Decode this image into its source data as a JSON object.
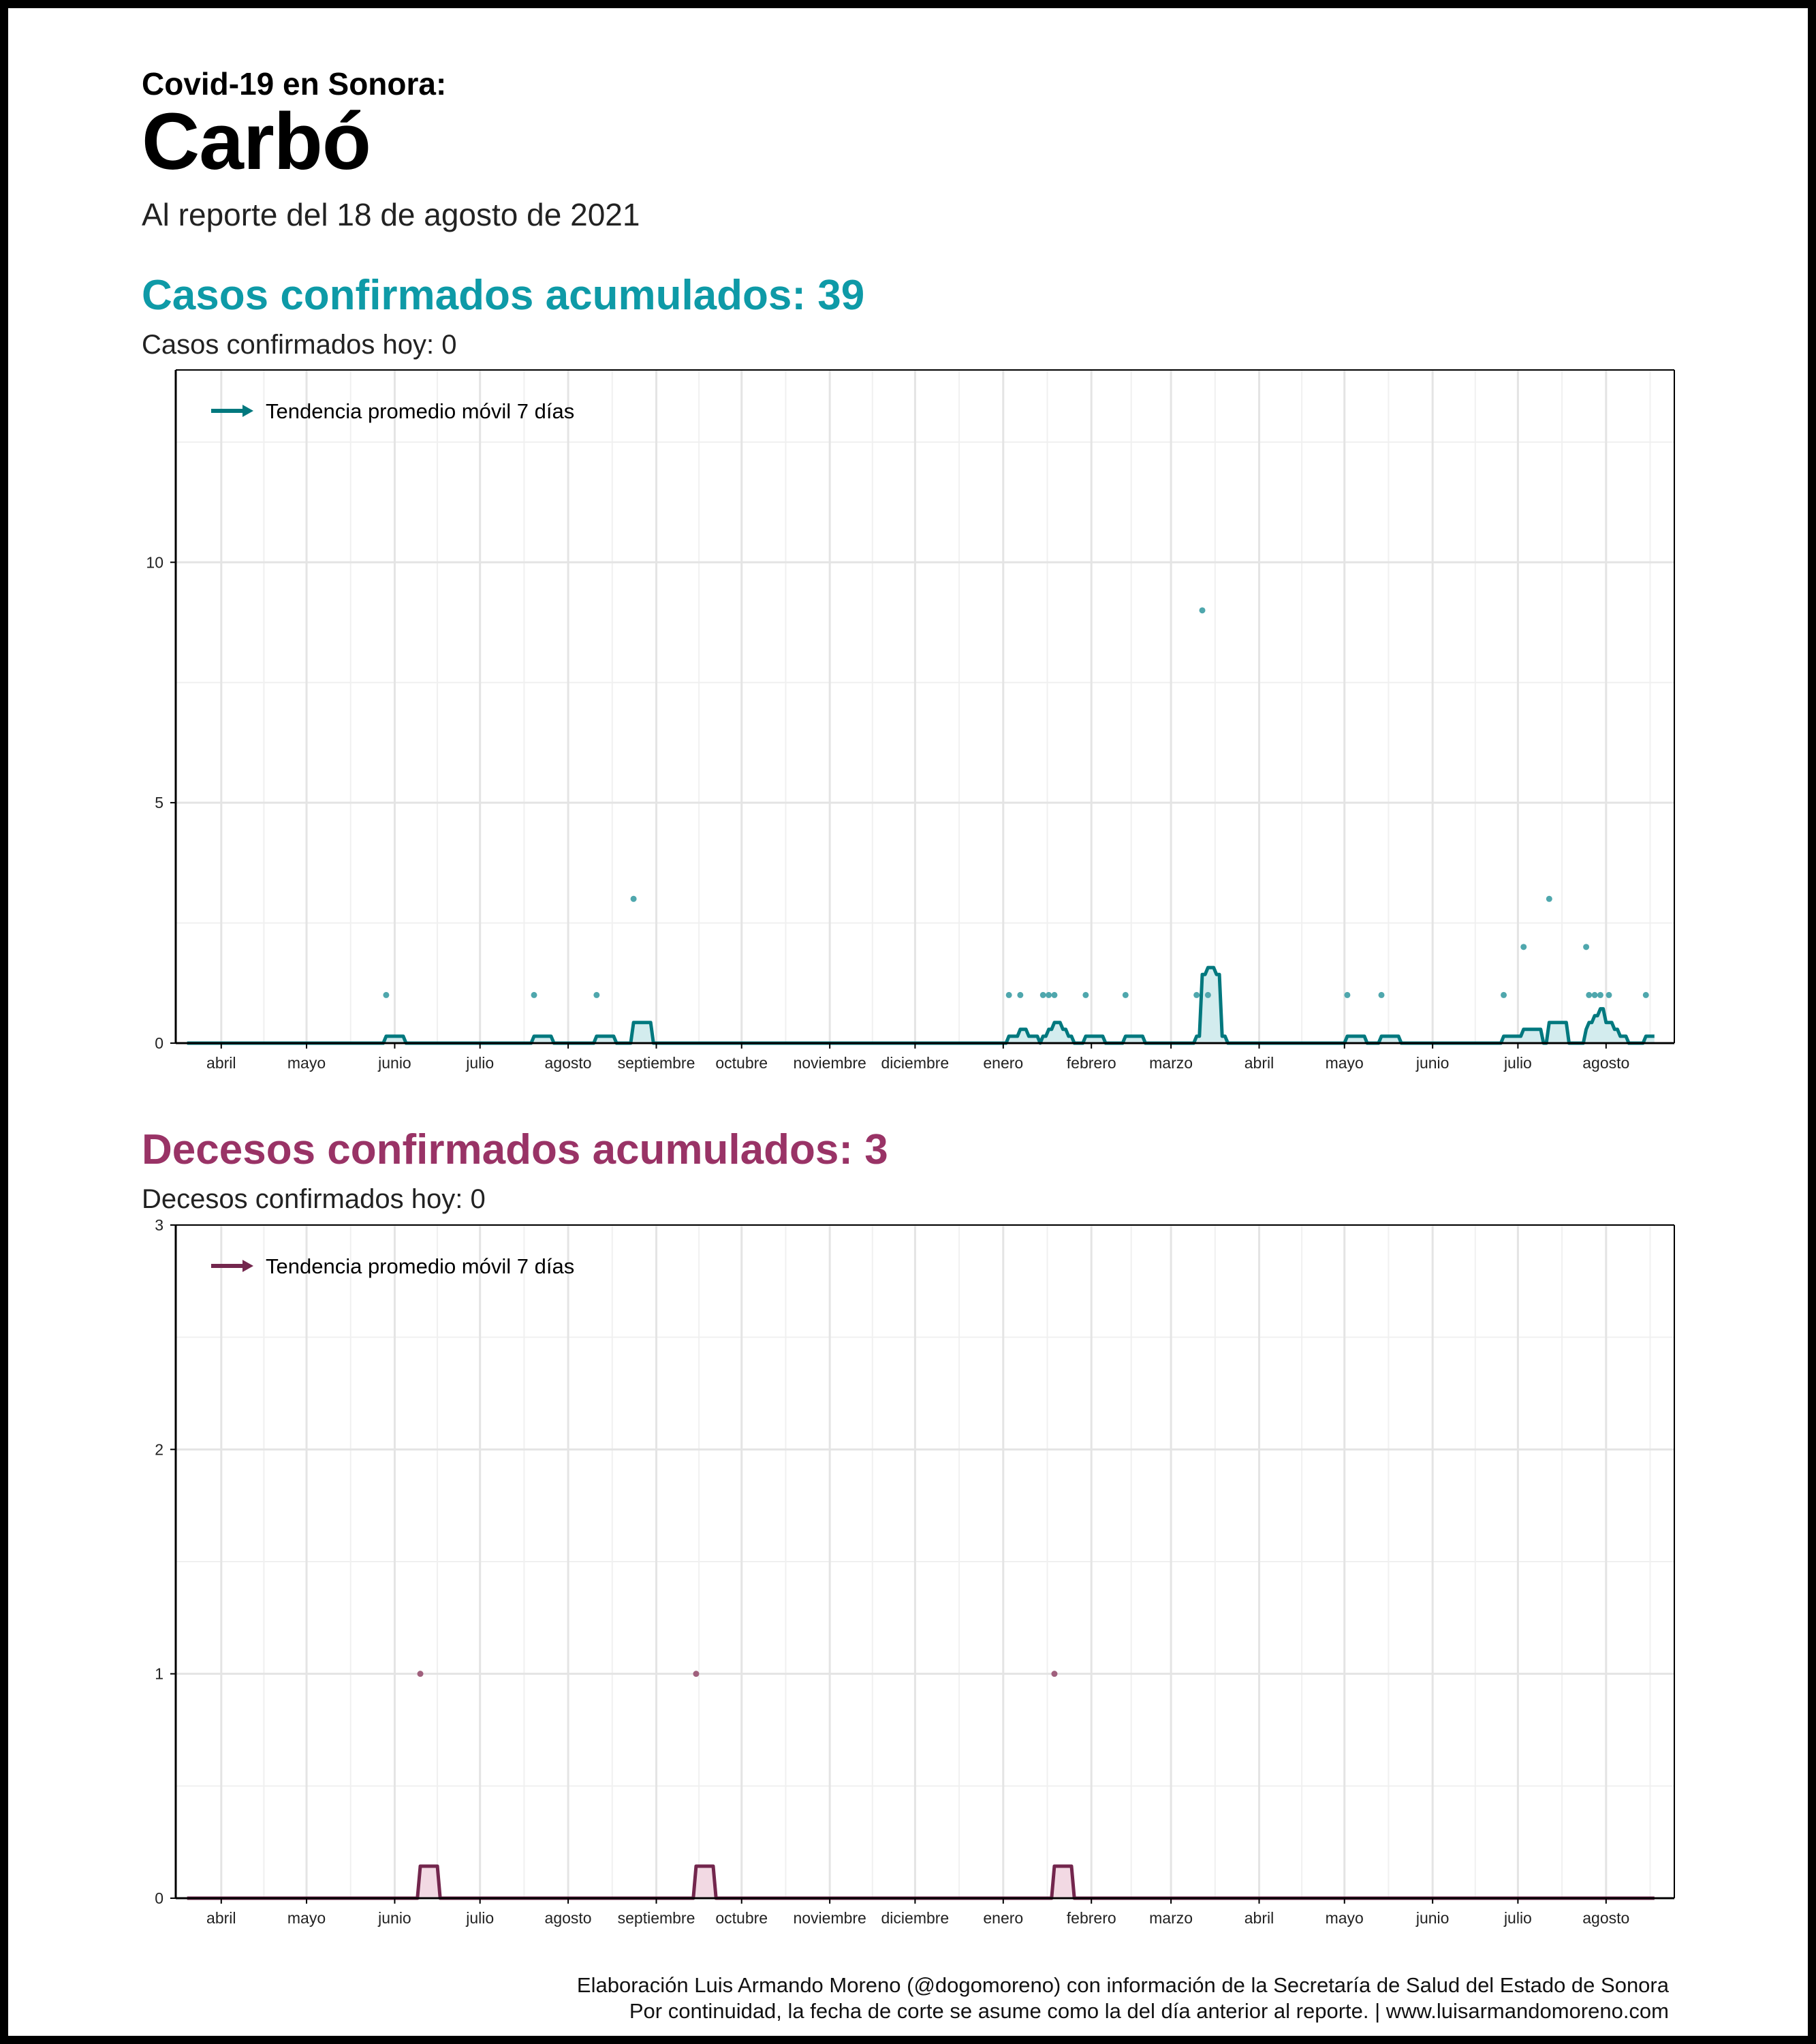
{
  "header": {
    "pre_title": "Covid-19 en Sonora:",
    "place": "Carbó",
    "report_date": "Al reporte del 18 de agosto de 2021"
  },
  "cases": {
    "heading": "Casos confirmados acumulados: 39",
    "today": "Casos confirmados hoy: 0"
  },
  "deaths": {
    "heading": "Decesos confirmados acumulados: 3",
    "today": "Decesos confirmados hoy: 0"
  },
  "footer": {
    "line1": "Elaboración Luis Armando Moreno (@dogomoreno) con información de la Secretaría de Salud del Estado de Sonora",
    "line2": "Por continuidad, la fecha de corte se asume como la del día anterior al reporte. | www.luisarmandomoreno.com"
  },
  "colors": {
    "cases_title": "#0E9AA7",
    "cases_line": "#01787E",
    "cases_point": "#4FA7AD",
    "cases_fill": "#D3ECEE",
    "deaths_title": "#993366",
    "deaths_line": "#73264D",
    "deaths_point": "#A0607D",
    "deaths_fill": "#F2D9E3"
  },
  "chart_data": [
    {
      "id": "cases",
      "type": "scatter",
      "legend": "Tendencia promedio móvil 7 días",
      "legend_position": "top-left",
      "grid": true,
      "ylim": [
        0,
        14
      ],
      "yticks": [
        0,
        5,
        10
      ],
      "xlim": [
        "2020-03-16",
        "2021-08-25"
      ],
      "xticks": [
        {
          "date": "2020-04-01",
          "label": "abril"
        },
        {
          "date": "2020-05-01",
          "label": "mayo"
        },
        {
          "date": "2020-06-01",
          "label": "junio"
        },
        {
          "date": "2020-07-01",
          "label": "julio"
        },
        {
          "date": "2020-08-01",
          "label": "agosto"
        },
        {
          "date": "2020-09-01",
          "label": "septiembre"
        },
        {
          "date": "2020-10-01",
          "label": "octubre"
        },
        {
          "date": "2020-11-01",
          "label": "noviembre"
        },
        {
          "date": "2020-12-01",
          "label": "diciembre"
        },
        {
          "date": "2021-01-01",
          "label": "enero"
        },
        {
          "date": "2021-02-01",
          "label": "febrero"
        },
        {
          "date": "2021-03-01",
          "label": "marzo"
        },
        {
          "date": "2021-04-01",
          "label": "abril"
        },
        {
          "date": "2021-05-01",
          "label": "mayo"
        },
        {
          "date": "2021-06-01",
          "label": "junio"
        },
        {
          "date": "2021-07-01",
          "label": "julio"
        },
        {
          "date": "2021-08-01",
          "label": "agosto"
        }
      ],
      "points": [
        {
          "date": "2020-05-29",
          "value": 1
        },
        {
          "date": "2020-07-20",
          "value": 1
        },
        {
          "date": "2020-08-11",
          "value": 1
        },
        {
          "date": "2020-08-24",
          "value": 3
        },
        {
          "date": "2021-01-03",
          "value": 1
        },
        {
          "date": "2021-01-07",
          "value": 1
        },
        {
          "date": "2021-01-15",
          "value": 1
        },
        {
          "date": "2021-01-17",
          "value": 1
        },
        {
          "date": "2021-01-19",
          "value": 1
        },
        {
          "date": "2021-01-30",
          "value": 1
        },
        {
          "date": "2021-02-13",
          "value": 1
        },
        {
          "date": "2021-03-10",
          "value": 1
        },
        {
          "date": "2021-03-12",
          "value": 9
        },
        {
          "date": "2021-03-14",
          "value": 1
        },
        {
          "date": "2021-05-02",
          "value": 1
        },
        {
          "date": "2021-05-14",
          "value": 1
        },
        {
          "date": "2021-06-26",
          "value": 1
        },
        {
          "date": "2021-07-03",
          "value": 2
        },
        {
          "date": "2021-07-12",
          "value": 3
        },
        {
          "date": "2021-07-25",
          "value": 2
        },
        {
          "date": "2021-07-26",
          "value": 1
        },
        {
          "date": "2021-07-28",
          "value": 1
        },
        {
          "date": "2021-07-30",
          "value": 1
        },
        {
          "date": "2021-08-02",
          "value": 1
        },
        {
          "date": "2021-08-15",
          "value": 1
        }
      ]
    },
    {
      "id": "deaths",
      "type": "scatter",
      "legend": "Tendencia promedio móvil 7 días",
      "legend_position": "top-left",
      "grid": true,
      "ylim": [
        0,
        3
      ],
      "yticks": [
        0,
        1,
        2,
        3
      ],
      "xlim": [
        "2020-03-16",
        "2021-08-25"
      ],
      "xticks": [
        {
          "date": "2020-04-01",
          "label": "abril"
        },
        {
          "date": "2020-05-01",
          "label": "mayo"
        },
        {
          "date": "2020-06-01",
          "label": "junio"
        },
        {
          "date": "2020-07-01",
          "label": "julio"
        },
        {
          "date": "2020-08-01",
          "label": "agosto"
        },
        {
          "date": "2020-09-01",
          "label": "septiembre"
        },
        {
          "date": "2020-10-01",
          "label": "octubre"
        },
        {
          "date": "2020-11-01",
          "label": "noviembre"
        },
        {
          "date": "2020-12-01",
          "label": "diciembre"
        },
        {
          "date": "2021-01-01",
          "label": "enero"
        },
        {
          "date": "2021-02-01",
          "label": "febrero"
        },
        {
          "date": "2021-03-01",
          "label": "marzo"
        },
        {
          "date": "2021-04-01",
          "label": "abril"
        },
        {
          "date": "2021-05-01",
          "label": "mayo"
        },
        {
          "date": "2021-06-01",
          "label": "junio"
        },
        {
          "date": "2021-07-01",
          "label": "julio"
        },
        {
          "date": "2021-08-01",
          "label": "agosto"
        }
      ],
      "points": [
        {
          "date": "2020-06-10",
          "value": 1
        },
        {
          "date": "2020-09-15",
          "value": 1
        },
        {
          "date": "2021-01-19",
          "value": 1
        }
      ]
    }
  ]
}
